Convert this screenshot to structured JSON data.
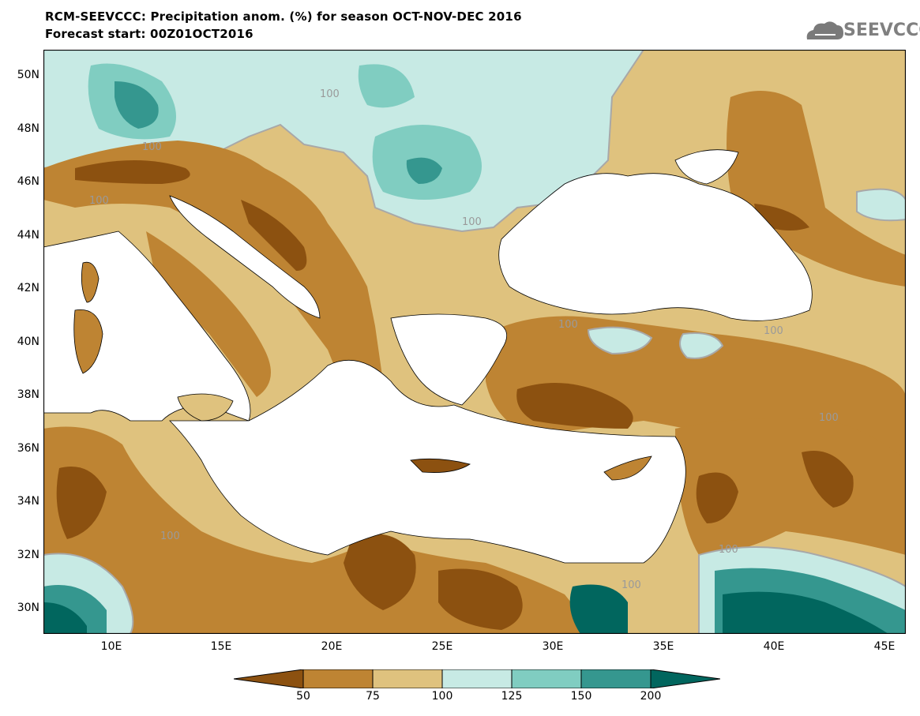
{
  "title": {
    "line1": "RCM-SEEVCCC: Precipitation anom. (%) for season OCT-NOV-DEC 2016",
    "line2": "Forecast start: 00Z01OCT2016"
  },
  "logo": {
    "text": "SEEVCCC",
    "icon": "cloud-icon"
  },
  "map": {
    "lat_labels": [
      "50N",
      "48N",
      "46N",
      "44N",
      "42N",
      "40N",
      "38N",
      "36N",
      "34N",
      "32N",
      "30N"
    ],
    "lon_labels": [
      "10E",
      "15E",
      "20E",
      "25E",
      "30E",
      "35E",
      "40E",
      "45E"
    ],
    "contour_labels": [
      "100",
      "100",
      "100",
      "100",
      "100",
      "100",
      "100",
      "100",
      "100",
      "100"
    ],
    "colors": {
      "c_lt50": "#8c5110",
      "c_50_75": "#be8433",
      "c_75_100": "#dfc27e",
      "c_100_125": "#c7eae4",
      "c_125_150": "#80cdc1",
      "c_150_200": "#35978f",
      "c_gt200": "#01665e",
      "sea": "#ffffff"
    }
  },
  "colorbar": {
    "labels": [
      "50",
      "75",
      "100",
      "125",
      "150",
      "200"
    ],
    "colors": [
      "#8c5110",
      "#be8433",
      "#dfc27e",
      "#c7eae4",
      "#80cdc1",
      "#35978f",
      "#01665e"
    ]
  }
}
